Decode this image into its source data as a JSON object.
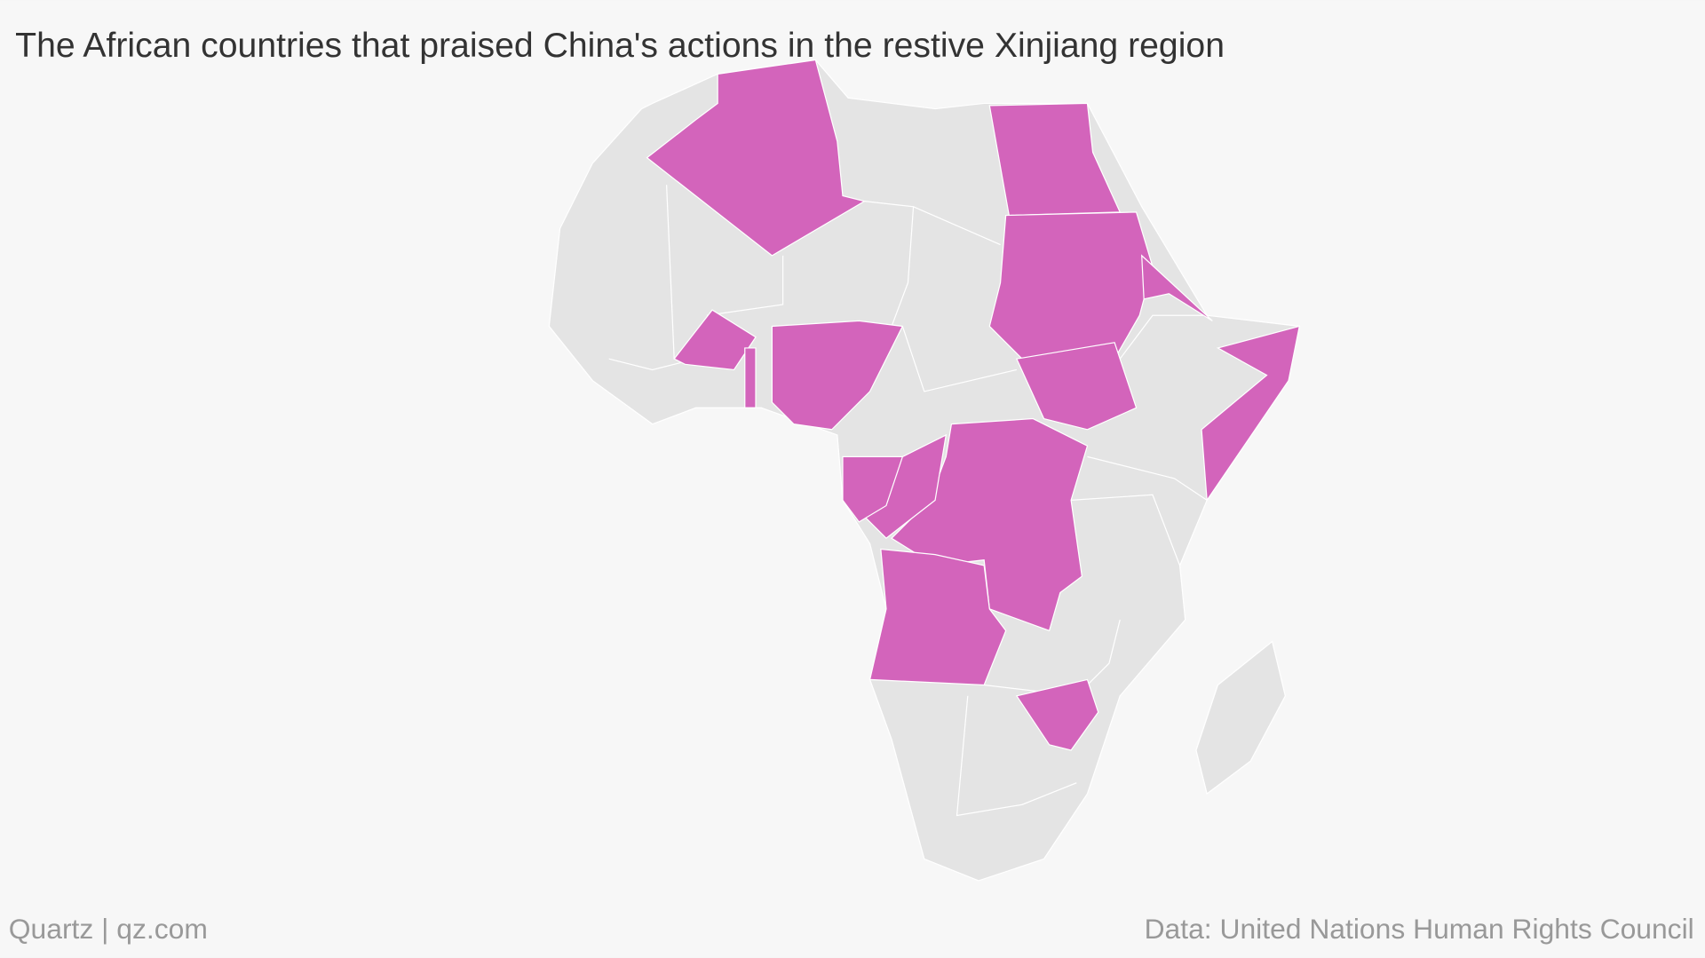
{
  "header": {
    "title": "The African countries that praised China's actions in the restive Xinjiang region"
  },
  "footer": {
    "credit": "Quartz | qz.com",
    "source": "Data: United Nations Human Rights Council"
  }
}
